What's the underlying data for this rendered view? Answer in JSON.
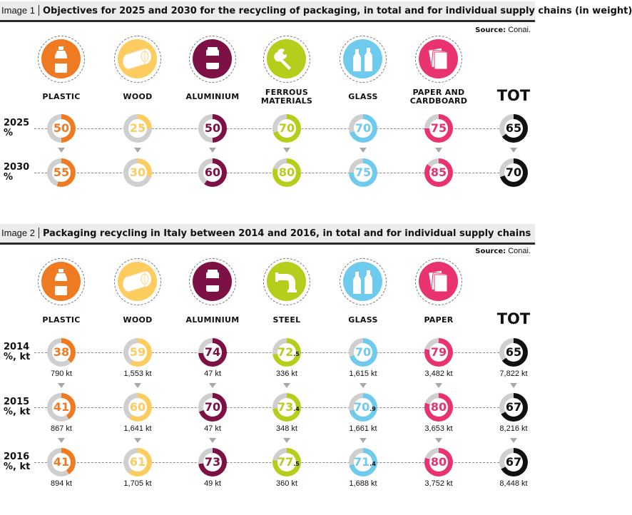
{
  "colors": {
    "plastic": "#ee7a22",
    "wood": "#fccd5e",
    "aluminium": "#7d1145",
    "ferrous": "#b7cd1c",
    "steel": "#b7cd1c",
    "glass": "#6ecbee",
    "paper": "#e8336e",
    "tot": "#111111",
    "track": "#cfcfcf"
  },
  "image1": {
    "label": "Image 1",
    "title": "Objectives for 2025 and 2030 for the recycling of packaging, in total and for individual supply chains (in weight)",
    "source_label": "Source:",
    "source_value": "Conai.",
    "chart_data": {
      "type": "donut-table",
      "categories": [
        "PLASTIC",
        "WOOD",
        "ALUMINIUM",
        "FERROUS\nMATERIALS",
        "GLASS",
        "PAPER AND\nCARDBOARD",
        "TOT"
      ],
      "category_icons": [
        "bottle-icon",
        "log-icon",
        "can-icon",
        "wrench-icon",
        "bottles-icon",
        "papers-icon",
        ""
      ],
      "category_keys": [
        "plastic",
        "wood",
        "aluminium",
        "ferrous",
        "glass",
        "paper",
        "tot"
      ],
      "rows": [
        {
          "year": "2025",
          "unit": "%",
          "values": [
            50,
            25,
            50,
            70,
            70,
            75,
            65
          ]
        },
        {
          "year": "2030",
          "unit": "%",
          "values": [
            55,
            30,
            60,
            80,
            75,
            85,
            70
          ]
        }
      ]
    }
  },
  "image2": {
    "label": "Image 2",
    "title": "Packaging recycling in Italy between 2014 and 2016, in total and for individual supply chains",
    "source_label": "Source:",
    "source_value": "Conai.",
    "chart_data": {
      "type": "donut-table",
      "categories": [
        "PLASTIC",
        "WOOD",
        "ALUMINIUM",
        "STEEL",
        "GLASS",
        "PAPER",
        "TOT"
      ],
      "category_icons": [
        "bottle-icon",
        "log-icon",
        "can-icon",
        "pipe-icon",
        "bottles-icon",
        "papers-icon",
        ""
      ],
      "category_keys": [
        "plastic",
        "wood",
        "aluminium",
        "steel",
        "glass",
        "paper",
        "tot"
      ],
      "rows": [
        {
          "year": "2014",
          "unit": "%, kt",
          "values": [
            38,
            59,
            74,
            72.5,
            70,
            79,
            65
          ],
          "display": [
            [
              "38",
              ""
            ],
            [
              "59",
              ""
            ],
            [
              "74",
              ""
            ],
            [
              "72",
              ".5"
            ],
            [
              "70",
              ""
            ],
            [
              "79",
              ""
            ],
            [
              "65",
              ""
            ]
          ],
          "kt": [
            "790 kt",
            "1,553 kt",
            "47 kt",
            "336 kt",
            "1,615 kt",
            "3,482 kt",
            "7,822 kt"
          ]
        },
        {
          "year": "2015",
          "unit": "%, kt",
          "values": [
            41,
            60,
            70,
            73.4,
            70.9,
            80,
            67
          ],
          "display": [
            [
              "41",
              ""
            ],
            [
              "60",
              ""
            ],
            [
              "70",
              ""
            ],
            [
              "73",
              ".4"
            ],
            [
              "70",
              ".9"
            ],
            [
              "80",
              ""
            ],
            [
              "67",
              ""
            ]
          ],
          "kt": [
            "867 kt",
            "1,641 kt",
            "47 kt",
            "348 kt",
            "1,661 kt",
            "3,653 kt",
            "8,216 kt"
          ]
        },
        {
          "year": "2016",
          "unit": "%, kt",
          "values": [
            41,
            61,
            73,
            77.5,
            71.4,
            80,
            67
          ],
          "display": [
            [
              "41",
              ""
            ],
            [
              "61",
              ""
            ],
            [
              "73",
              ""
            ],
            [
              "77",
              ".5"
            ],
            [
              "71",
              ".4"
            ],
            [
              "80",
              ""
            ],
            [
              "67",
              ""
            ]
          ],
          "kt": [
            "894 kt",
            "1,705 kt",
            "49 kt",
            "360 kt",
            "1,688 kt",
            "3,752 kt",
            "8,448 kt"
          ]
        }
      ]
    }
  }
}
